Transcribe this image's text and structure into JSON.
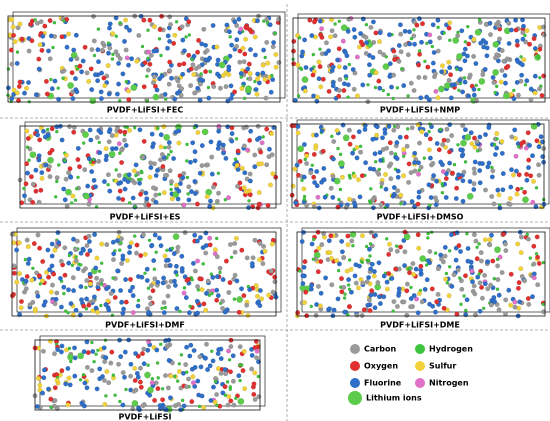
{
  "panels": [
    {
      "label": "PVDF+LiFSI+FEC"
    },
    {
      "label": "PVDF+LiFSI+NMP"
    },
    {
      "label": "PVDF+LiFSI+ES"
    },
    {
      "label": "PVDF+LiFSI+DMSO"
    },
    {
      "label": "PVDF+LiFSI+DMF"
    },
    {
      "label": "PVDF+LiFSI+DME"
    },
    {
      "label": "PVDF+LiFSI"
    }
  ],
  "legend": [
    {
      "label": "Carbon",
      "color": "#9a9a9a"
    },
    {
      "label": "Hydrogen",
      "color": "#3cc43c"
    },
    {
      "label": "Oxygen",
      "color": "#e03030"
    },
    {
      "label": "Sulfur",
      "color": "#f2d23a"
    },
    {
      "label": "Fluorine",
      "color": "#2f6fc8"
    },
    {
      "label": "Nitrogen",
      "color": "#e070c8"
    },
    {
      "label": "Lithium ions",
      "color": "#5ccc4a"
    }
  ]
}
